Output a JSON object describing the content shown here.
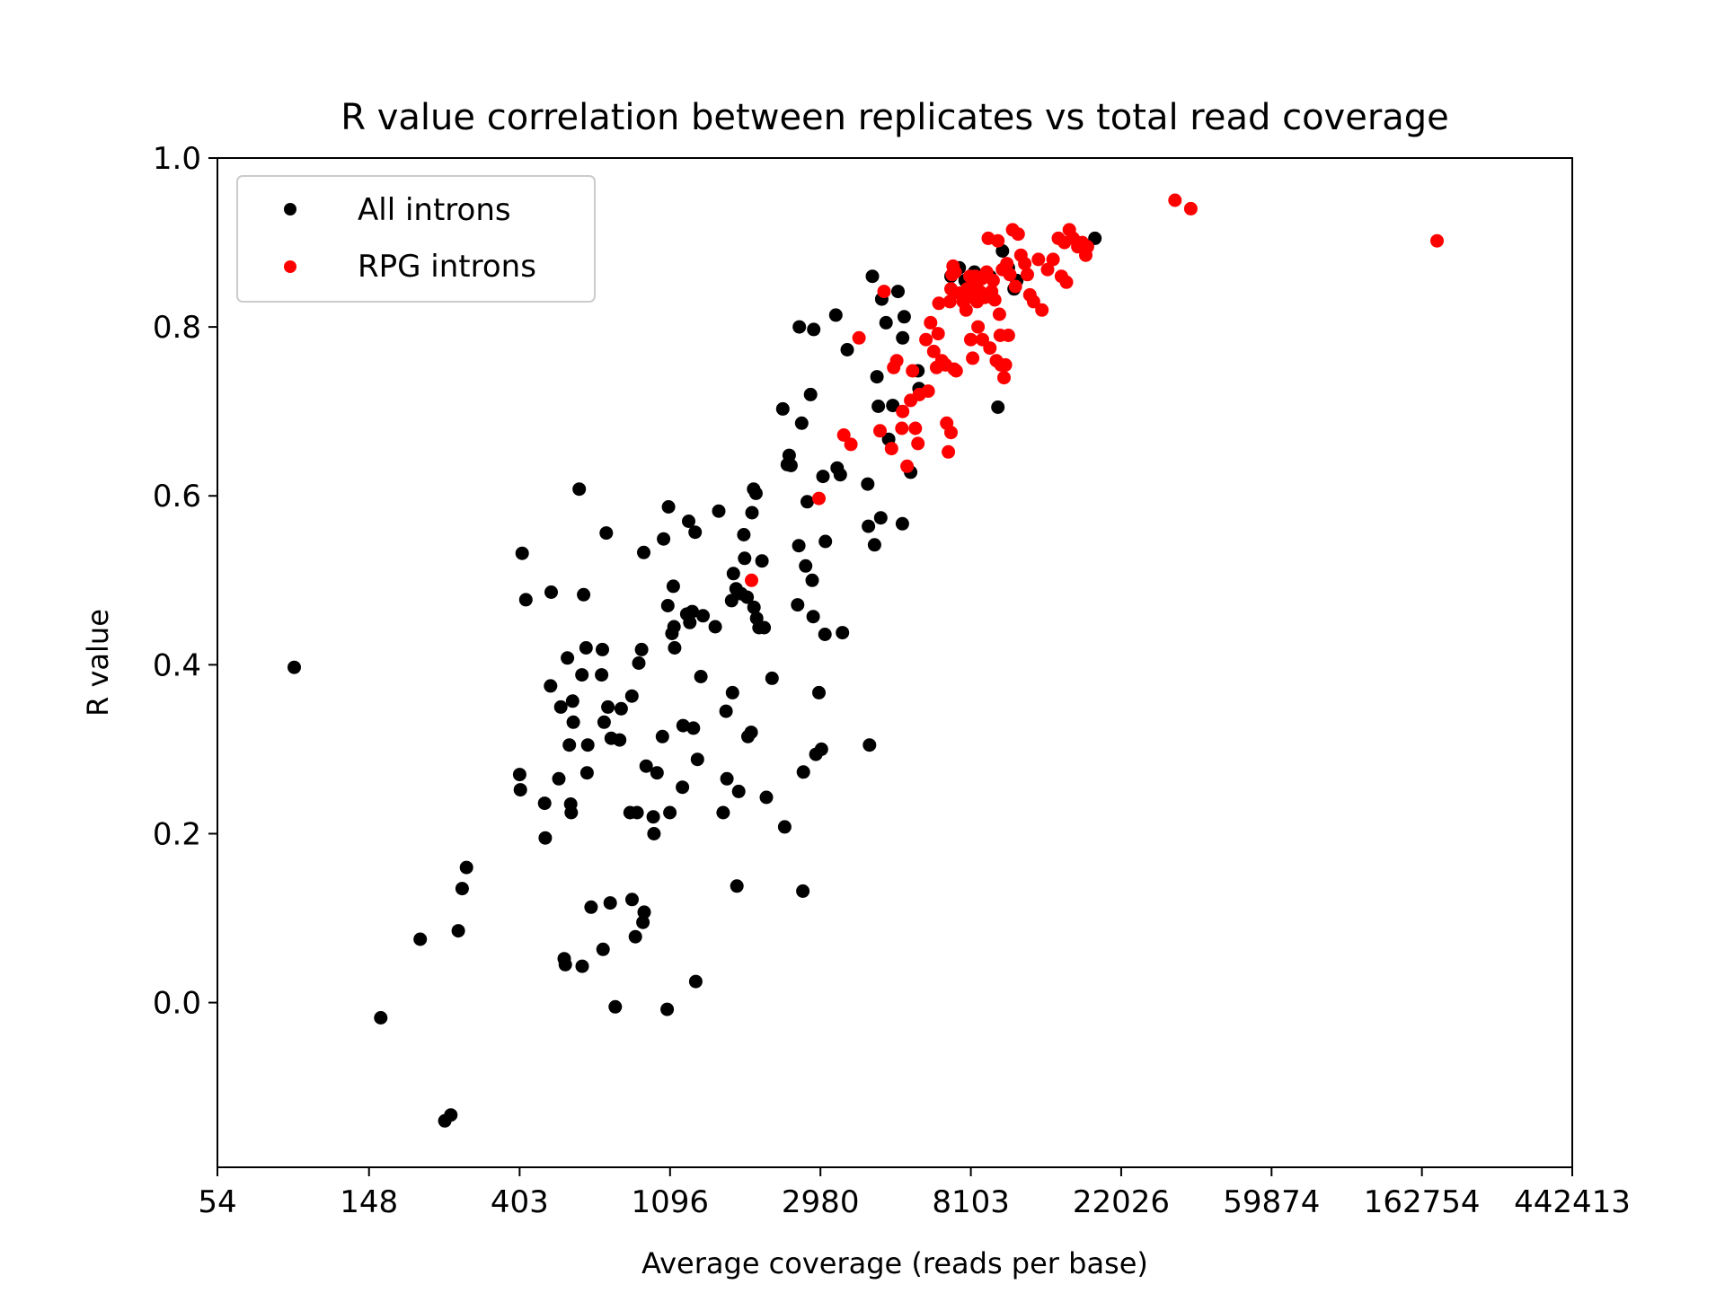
{
  "chart_data": {
    "type": "scatter",
    "title": "R value correlation between replicates vs total read coverage",
    "xlabel": "Average coverage (reads per base)",
    "ylabel": "R value",
    "x_scale": "log",
    "xlim": [
      54,
      442413
    ],
    "ylim": [
      -0.195,
      1.0
    ],
    "x_ticks": [
      54,
      148,
      403,
      1096,
      2980,
      8103,
      22026,
      59874,
      162754,
      442413
    ],
    "x_tick_labels": [
      "54",
      "148",
      "403",
      "1096",
      "2980",
      "8103",
      "22026",
      "59874",
      "162754",
      "442413"
    ],
    "y_ticks": [
      0.0,
      0.2,
      0.4,
      0.6,
      0.8,
      1.0
    ],
    "y_tick_labels": [
      "0.0",
      "0.2",
      "0.4",
      "0.6",
      "0.8",
      "1.0"
    ],
    "grid": false,
    "legend_position": "top-left",
    "series": [
      {
        "name": "All introns",
        "color": "#000000",
        "points": [
          [
            90,
            0.397
          ],
          [
            160,
            -0.018
          ],
          [
            208,
            0.075
          ],
          [
            245,
            -0.14
          ],
          [
            255,
            -0.133
          ],
          [
            268,
            0.085
          ],
          [
            275,
            0.135
          ],
          [
            283,
            0.16
          ],
          [
            403,
            0.27
          ],
          [
            405,
            0.252
          ],
          [
            410,
            0.532
          ],
          [
            420,
            0.477
          ],
          [
            476,
            0.236
          ],
          [
            478,
            0.195
          ],
          [
            495,
            0.375
          ],
          [
            497,
            0.486
          ],
          [
            523,
            0.265
          ],
          [
            530,
            0.35
          ],
          [
            542,
            0.052
          ],
          [
            546,
            0.045
          ],
          [
            554,
            0.408
          ],
          [
            561,
            0.305
          ],
          [
            566,
            0.235
          ],
          [
            568,
            0.225
          ],
          [
            573,
            0.357
          ],
          [
            576,
            0.332
          ],
          [
            599,
            0.608
          ],
          [
            610,
            0.388
          ],
          [
            611,
            0.043
          ],
          [
            617,
            0.483
          ],
          [
            627,
            0.42
          ],
          [
            631,
            0.272
          ],
          [
            634,
            0.305
          ],
          [
            648,
            0.113
          ],
          [
            695,
            0.388
          ],
          [
            699,
            0.418
          ],
          [
            702,
            0.063
          ],
          [
            707,
            0.332
          ],
          [
            717,
            0.556
          ],
          [
            725,
            0.35
          ],
          [
            736,
            0.118
          ],
          [
            741,
            0.313
          ],
          [
            761,
            -0.005
          ],
          [
            784,
            0.311
          ],
          [
            792,
            0.348
          ],
          [
            840,
            0.225
          ],
          [
            850,
            0.363
          ],
          [
            851,
            0.122
          ],
          [
            870,
            0.078
          ],
          [
            880,
            0.225
          ],
          [
            890,
            0.402
          ],
          [
            907,
            0.418
          ],
          [
            915,
            0.095
          ],
          [
            920,
            0.533
          ],
          [
            923,
            0.107
          ],
          [
            935,
            0.28
          ],
          [
            980,
            0.22
          ],
          [
            985,
            0.2
          ],
          [
            1005,
            0.272
          ],
          [
            1042,
            0.315
          ],
          [
            1050,
            0.549
          ],
          [
            1075,
            -0.008
          ],
          [
            1080,
            0.47
          ],
          [
            1085,
            0.587
          ],
          [
            1095,
            0.225
          ],
          [
            1110,
            0.437
          ],
          [
            1120,
            0.493
          ],
          [
            1125,
            0.445
          ],
          [
            1130,
            0.42
          ],
          [
            1190,
            0.255
          ],
          [
            1195,
            0.328
          ],
          [
            1225,
            0.46
          ],
          [
            1240,
            0.57
          ],
          [
            1250,
            0.45
          ],
          [
            1270,
            0.463
          ],
          [
            1280,
            0.325
          ],
          [
            1295,
            0.557
          ],
          [
            1300,
            0.025
          ],
          [
            1315,
            0.288
          ],
          [
            1345,
            0.386
          ],
          [
            1365,
            0.458
          ],
          [
            1480,
            0.445
          ],
          [
            1515,
            0.582
          ],
          [
            1560,
            0.225
          ],
          [
            1590,
            0.345
          ],
          [
            1600,
            0.265
          ],
          [
            1650,
            0.476
          ],
          [
            1660,
            0.367
          ],
          [
            1670,
            0.508
          ],
          [
            1700,
            0.49
          ],
          [
            1710,
            0.138
          ],
          [
            1730,
            0.25
          ],
          [
            1760,
            0.484
          ],
          [
            1790,
            0.554
          ],
          [
            1800,
            0.526
          ],
          [
            1830,
            0.48
          ],
          [
            1840,
            0.315
          ],
          [
            1880,
            0.32
          ],
          [
            1890,
            0.58
          ],
          [
            1910,
            0.608
          ],
          [
            1915,
            0.468
          ],
          [
            1940,
            0.603
          ],
          [
            1950,
            0.455
          ],
          [
            1980,
            0.444
          ],
          [
            2020,
            0.523
          ],
          [
            2050,
            0.444
          ],
          [
            2080,
            0.243
          ],
          [
            2160,
            0.384
          ],
          [
            2320,
            0.703
          ],
          [
            2350,
            0.208
          ],
          [
            2390,
            0.637
          ],
          [
            2420,
            0.648
          ],
          [
            2450,
            0.636
          ],
          [
            2560,
            0.471
          ],
          [
            2580,
            0.541
          ],
          [
            2590,
            0.8
          ],
          [
            2630,
            0.686
          ],
          [
            2650,
            0.132
          ],
          [
            2660,
            0.273
          ],
          [
            2700,
            0.517
          ],
          [
            2730,
            0.593
          ],
          [
            2790,
            0.72
          ],
          [
            2820,
            0.5
          ],
          [
            2840,
            0.457
          ],
          [
            2850,
            0.797
          ],
          [
            2890,
            0.294
          ],
          [
            2950,
            0.367
          ],
          [
            3000,
            0.3
          ],
          [
            3030,
            0.623
          ],
          [
            3070,
            0.436
          ],
          [
            3080,
            0.546
          ],
          [
            3300,
            0.814
          ],
          [
            3330,
            0.633
          ],
          [
            3400,
            0.625
          ],
          [
            3450,
            0.438
          ],
          [
            3560,
            0.773
          ],
          [
            4080,
            0.614
          ],
          [
            4100,
            0.564
          ],
          [
            4130,
            0.305
          ],
          [
            4210,
            0.86
          ],
          [
            4270,
            0.542
          ],
          [
            4340,
            0.741
          ],
          [
            4380,
            0.706
          ],
          [
            4450,
            0.574
          ],
          [
            4480,
            0.833
          ],
          [
            4610,
            0.805
          ],
          [
            4690,
            0.667
          ],
          [
            4820,
            0.707
          ],
          [
            4990,
            0.842
          ],
          [
            5140,
            0.567
          ],
          [
            5150,
            0.787
          ],
          [
            5200,
            0.812
          ],
          [
            5430,
            0.628
          ],
          [
            5700,
            0.748
          ],
          [
            5740,
            0.727
          ],
          [
            7100,
            0.86
          ],
          [
            7500,
            0.87
          ],
          [
            7800,
            0.855
          ],
          [
            8300,
            0.865
          ],
          [
            9200,
            0.86
          ],
          [
            9700,
            0.705
          ],
          [
            10000,
            0.89
          ],
          [
            10400,
            0.87
          ],
          [
            10800,
            0.845
          ],
          [
            11000,
            0.855
          ],
          [
            18500,
            0.905
          ]
        ]
      },
      {
        "name": "RPG introns",
        "color": "#ff0000",
        "points": [
          [
            1885,
            0.5
          ],
          [
            2950,
            0.597
          ],
          [
            3480,
            0.672
          ],
          [
            3650,
            0.661
          ],
          [
            3850,
            0.787
          ],
          [
            4430,
            0.677
          ],
          [
            4550,
            0.842
          ],
          [
            4780,
            0.656
          ],
          [
            4850,
            0.752
          ],
          [
            4950,
            0.76
          ],
          [
            5120,
            0.68
          ],
          [
            5150,
            0.7
          ],
          [
            5300,
            0.635
          ],
          [
            5430,
            0.713
          ],
          [
            5500,
            0.748
          ],
          [
            5600,
            0.68
          ],
          [
            5700,
            0.662
          ],
          [
            5750,
            0.72
          ],
          [
            6010,
            0.785
          ],
          [
            6100,
            0.724
          ],
          [
            6200,
            0.805
          ],
          [
            6330,
            0.771
          ],
          [
            6450,
            0.752
          ],
          [
            6520,
            0.792
          ],
          [
            6550,
            0.828
          ],
          [
            6680,
            0.76
          ],
          [
            6850,
            0.755
          ],
          [
            6900,
            0.686
          ],
          [
            6980,
            0.652
          ],
          [
            7050,
            0.83
          ],
          [
            7100,
            0.675
          ],
          [
            7100,
            0.845
          ],
          [
            7150,
            0.862
          ],
          [
            7200,
            0.872
          ],
          [
            7250,
            0.75
          ],
          [
            7300,
            0.865
          ],
          [
            7350,
            0.748
          ],
          [
            7500,
            0.84
          ],
          [
            7550,
            0.84
          ],
          [
            7700,
            0.83
          ],
          [
            7850,
            0.82
          ],
          [
            7900,
            0.845
          ],
          [
            8000,
            0.835
          ],
          [
            8050,
            0.86
          ],
          [
            8100,
            0.785
          ],
          [
            8150,
            0.845
          ],
          [
            8200,
            0.763
          ],
          [
            8230,
            0.852
          ],
          [
            8250,
            0.837
          ],
          [
            8300,
            0.85
          ],
          [
            8350,
            0.86
          ],
          [
            8400,
            0.845
          ],
          [
            8450,
            0.83
          ],
          [
            8500,
            0.8
          ],
          [
            8600,
            0.842
          ],
          [
            8700,
            0.857
          ],
          [
            8750,
            0.785
          ],
          [
            8800,
            0.86
          ],
          [
            8900,
            0.835
          ],
          [
            9000,
            0.865
          ],
          [
            9100,
            0.905
          ],
          [
            9200,
            0.775
          ],
          [
            9300,
            0.842
          ],
          [
            9400,
            0.855
          ],
          [
            9500,
            0.832
          ],
          [
            9600,
            0.76
          ],
          [
            9700,
            0.902
          ],
          [
            9800,
            0.815
          ],
          [
            9850,
            0.79
          ],
          [
            9900,
            0.755
          ],
          [
            10000,
            0.868
          ],
          [
            10100,
            0.74
          ],
          [
            10200,
            0.755
          ],
          [
            10300,
            0.875
          ],
          [
            10400,
            0.79
          ],
          [
            10500,
            0.862
          ],
          [
            10700,
            0.915
          ],
          [
            10900,
            0.848
          ],
          [
            11100,
            0.91
          ],
          [
            11300,
            0.885
          ],
          [
            11600,
            0.875
          ],
          [
            11800,
            0.862
          ],
          [
            12000,
            0.838
          ],
          [
            12300,
            0.83
          ],
          [
            12700,
            0.88
          ],
          [
            13000,
            0.82
          ],
          [
            13500,
            0.868
          ],
          [
            14000,
            0.88
          ],
          [
            14500,
            0.905
          ],
          [
            14800,
            0.86
          ],
          [
            15100,
            0.9
          ],
          [
            15300,
            0.853
          ],
          [
            15600,
            0.915
          ],
          [
            16000,
            0.905
          ],
          [
            16500,
            0.895
          ],
          [
            17000,
            0.9
          ],
          [
            17400,
            0.885
          ],
          [
            17600,
            0.895
          ],
          [
            31500,
            0.95
          ],
          [
            35000,
            0.94
          ],
          [
            180000,
            0.902
          ]
        ]
      }
    ]
  }
}
